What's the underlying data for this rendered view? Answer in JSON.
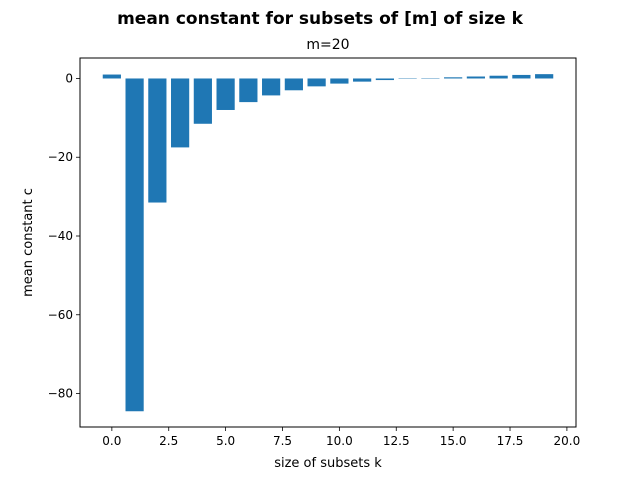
{
  "chart_data": {
    "type": "bar",
    "suptitle": "mean constant for subsets of [m] of size k",
    "title": "m=20",
    "xlabel": "size of subsets k",
    "ylabel": "mean constant c",
    "categories": [
      0,
      1,
      2,
      3,
      4,
      5,
      6,
      7,
      8,
      9,
      10,
      11,
      12,
      13,
      14,
      15,
      16,
      17,
      18,
      19
    ],
    "values": [
      1.0,
      -84.5,
      -31.5,
      -17.5,
      -11.5,
      -8.0,
      -6.0,
      -4.3,
      -3.0,
      -2.0,
      -1.3,
      -0.8,
      -0.4,
      -0.1,
      0.1,
      0.3,
      0.5,
      0.7,
      0.9,
      1.1
    ],
    "xlim": [
      -1.4,
      20.4
    ],
    "ylim": [
      -88.5,
      5.2
    ],
    "xticks": [
      0.0,
      2.5,
      5.0,
      7.5,
      10.0,
      12.5,
      15.0,
      17.5,
      20.0
    ],
    "xtick_labels": [
      "0.0",
      "2.5",
      "5.0",
      "7.5",
      "10.0",
      "12.5",
      "15.0",
      "17.5",
      "20.0"
    ],
    "yticks": [
      0,
      -20,
      -40,
      -60,
      -80
    ],
    "ytick_labels": [
      "0",
      "−20",
      "−40",
      "−60",
      "−80"
    ],
    "bar_width": 0.8,
    "bar_color": "#1f77b4",
    "grid": false,
    "legend": "none"
  }
}
